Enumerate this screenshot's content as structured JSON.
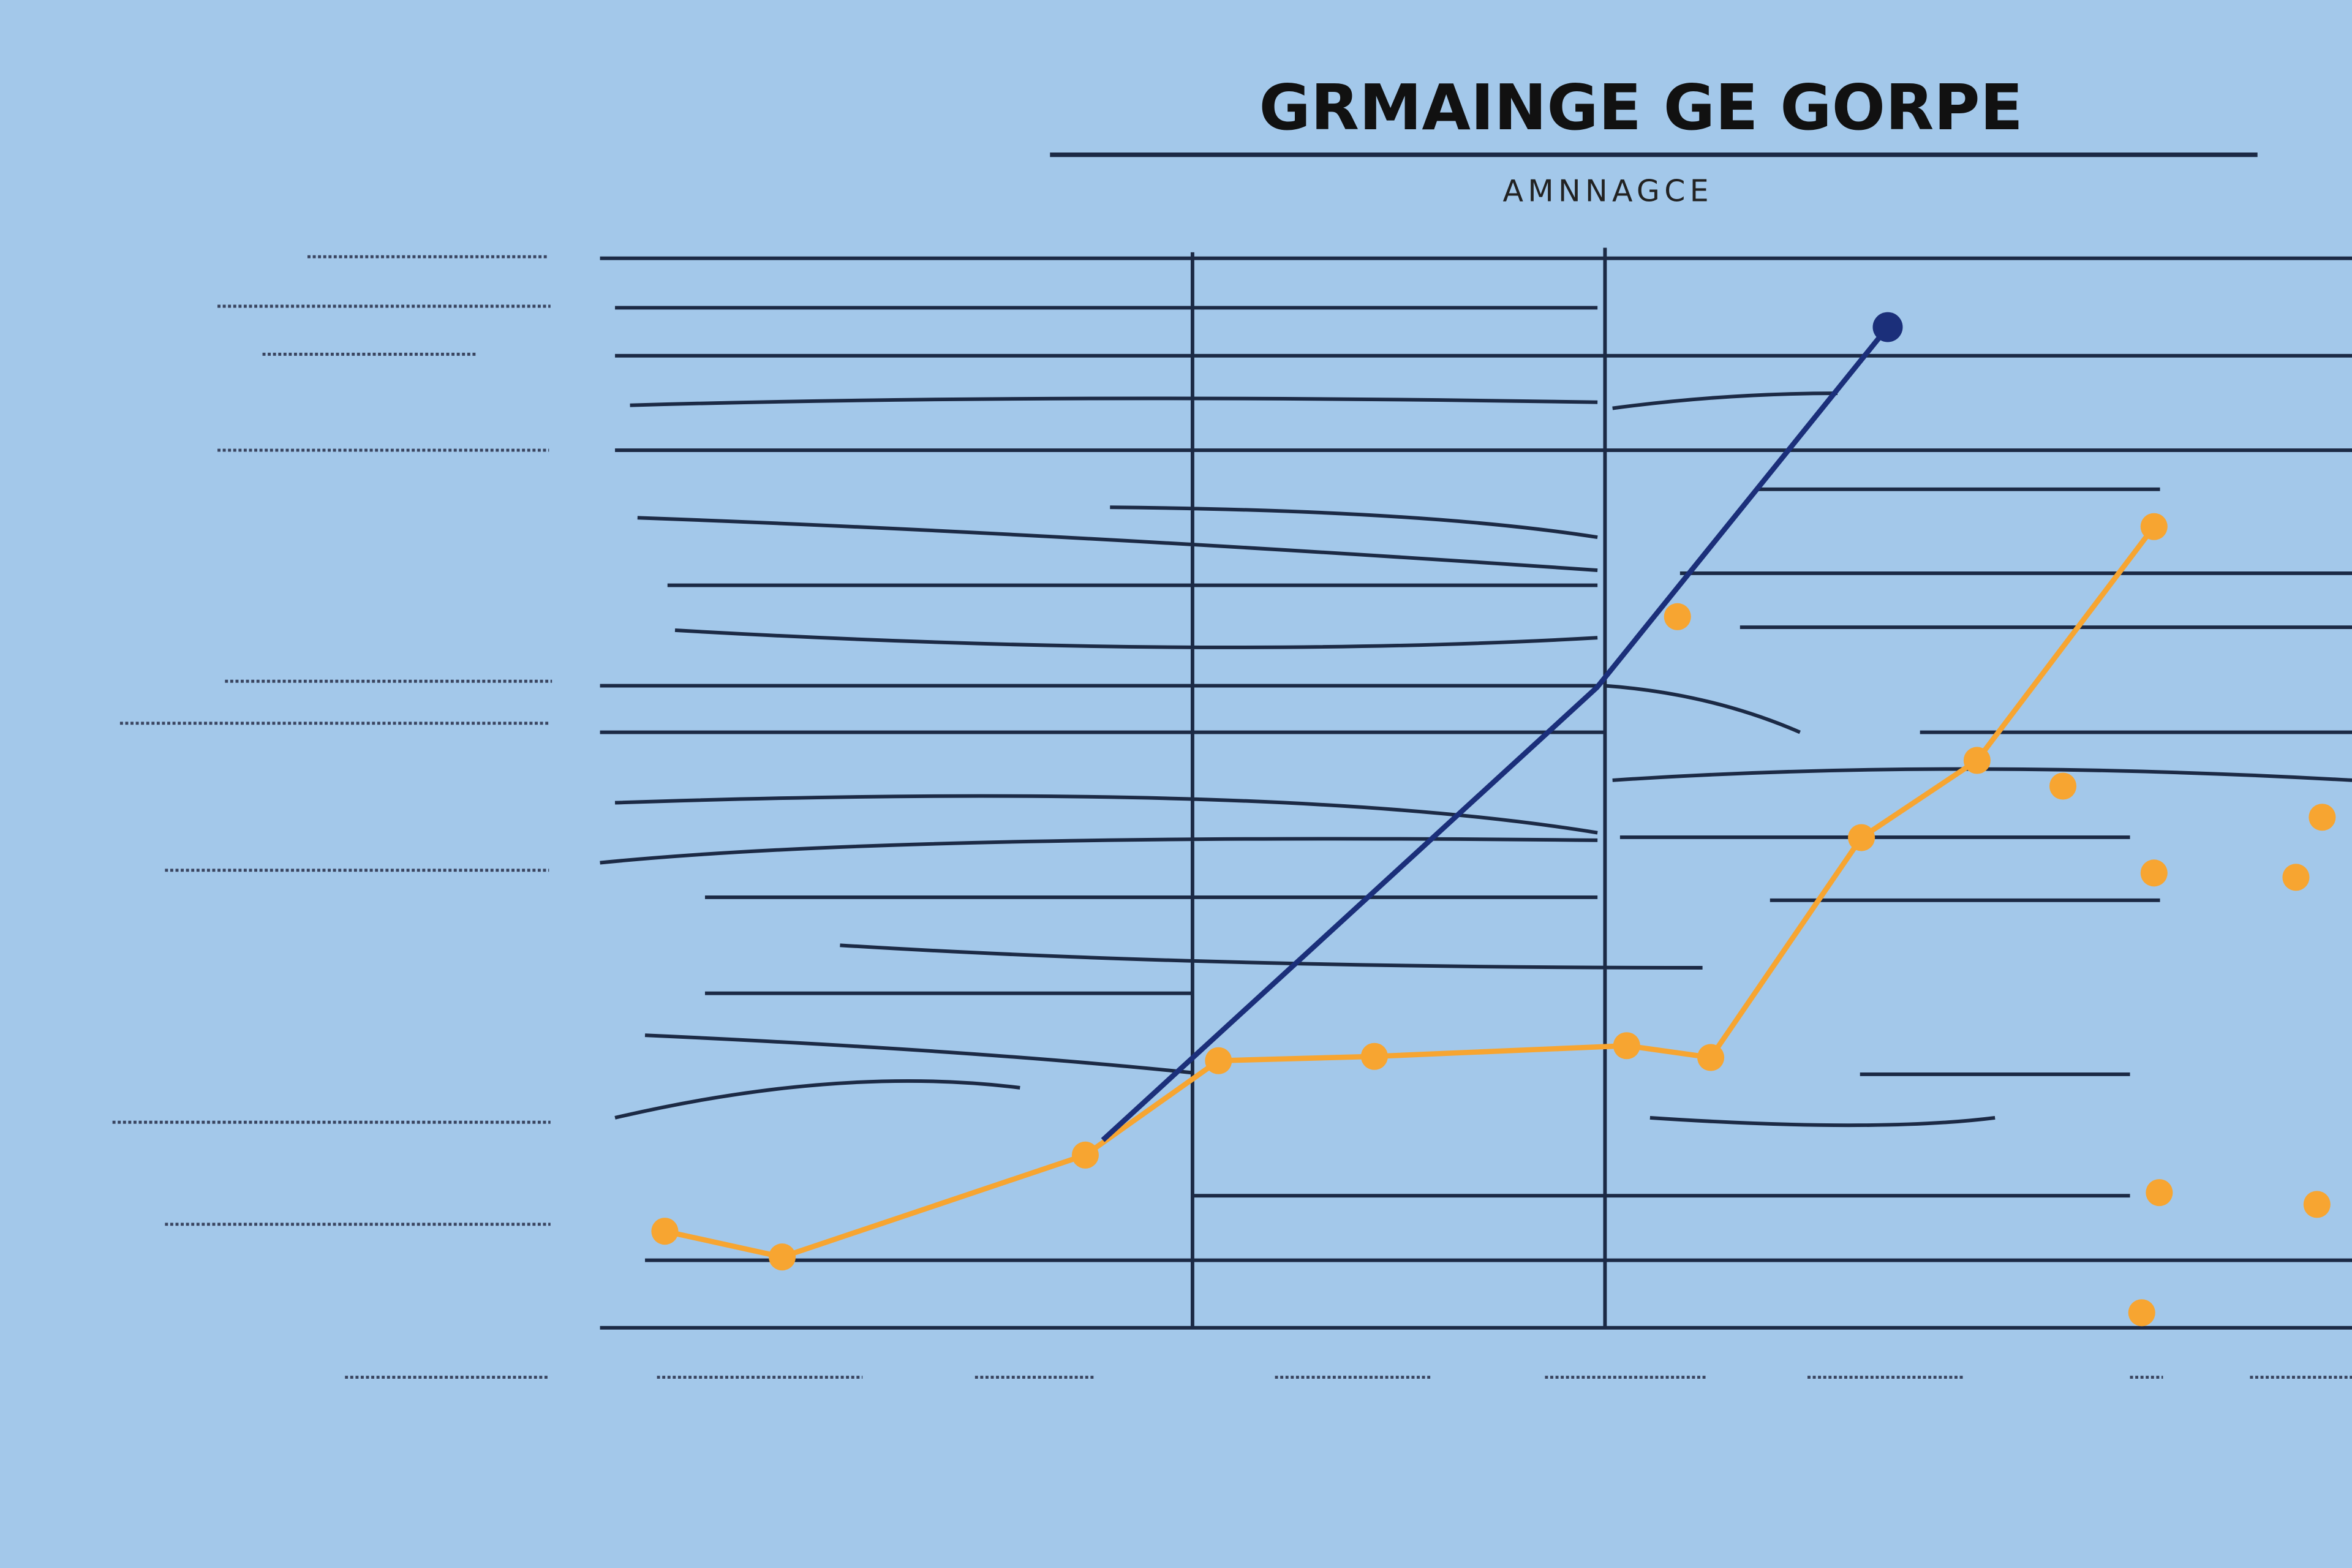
{
  "chart_data": {
    "type": "line",
    "title": "GRMAINGE GE GORPE",
    "subtitle": "AMNNAGCE",
    "xlim": [
      0,
      100
    ],
    "ylim": [
      0,
      100
    ],
    "series": [
      {
        "color": "#f7a531",
        "marker": true,
        "x": [
          3.7,
          10.4,
          27.7,
          35.3,
          44.2,
          58.6,
          63.4,
          72.0,
          78.6,
          88.7
        ],
        "values": [
          9.0,
          6.6,
          16.1,
          24.9,
          25.3,
          26.3,
          25.2,
          45.7,
          52.9,
          74.7
        ]
      },
      {
        "color": "#1b2f7a",
        "marker": false,
        "x": [
          28.7,
          56.9,
          73.5
        ],
        "values": [
          17.5,
          59.7,
          93.3
        ]
      },
      {
        "color": "#f7a531",
        "marker": true,
        "scatter": true,
        "x": [
          61.5,
          83.5,
          88.7,
          96.8,
          98.3,
          89.0,
          98.0,
          88.0
        ],
        "values": [
          66.3,
          50.5,
          42.4,
          42.0,
          47.6,
          12.6,
          11.5,
          1.4
        ]
      }
    ]
  }
}
